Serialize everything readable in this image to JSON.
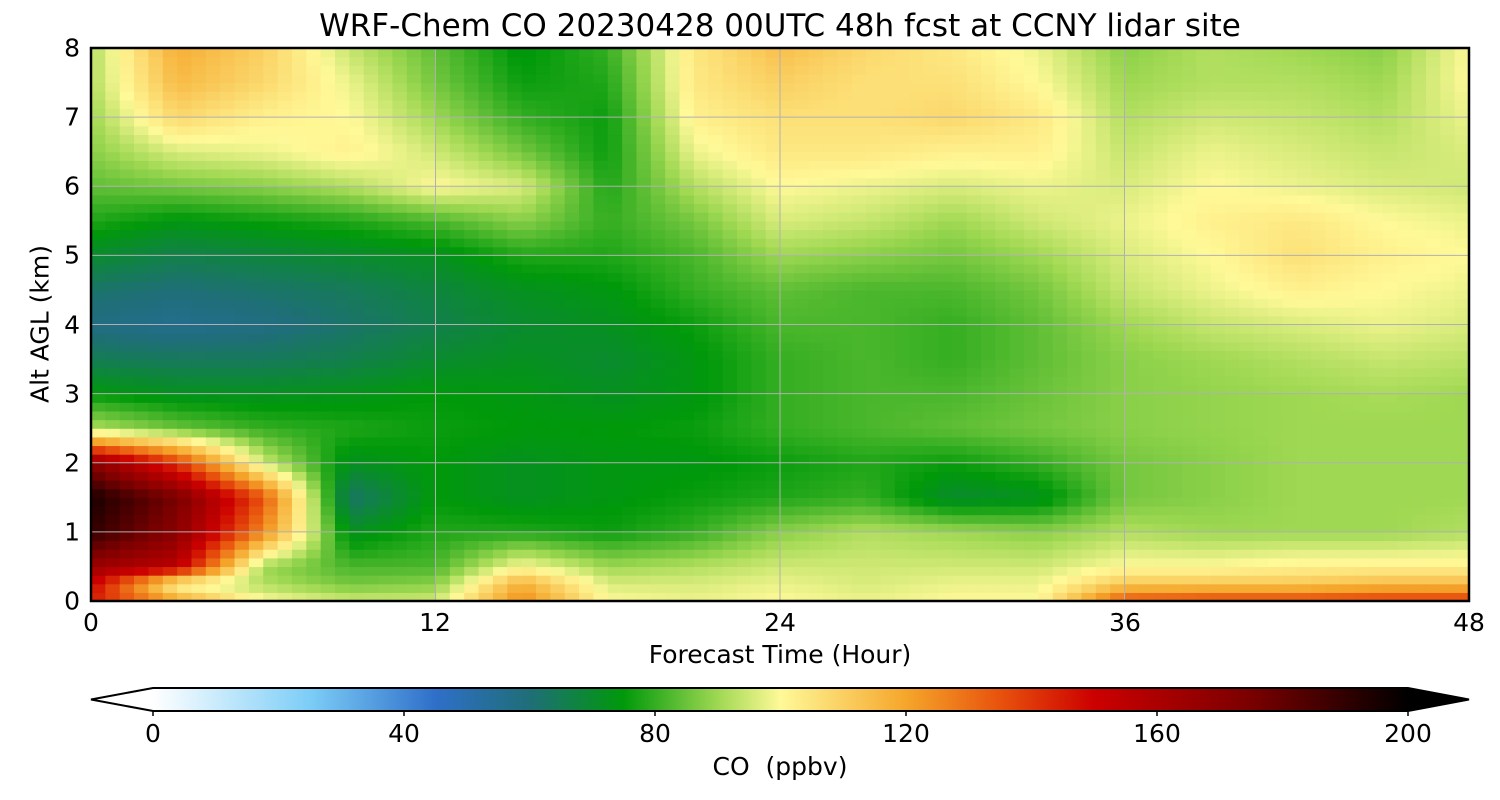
{
  "chart_data": {
    "type": "heatmap",
    "title": "WRF-Chem CO  20230428 00UTC 48h fcst at CCNY lidar site",
    "xlabel": "Forecast Time (Hour)",
    "ylabel": "Alt AGL (km)",
    "xlim": [
      0,
      48
    ],
    "ylim": [
      0,
      8
    ],
    "x_ticks": [
      "0",
      "12",
      "24",
      "36",
      "48"
    ],
    "y_ticks": [
      "0",
      "1",
      "2",
      "3",
      "4",
      "5",
      "6",
      "7",
      "8"
    ],
    "grid": true,
    "colorbar": {
      "label": "CO  (ppbv)",
      "range": [
        0,
        200
      ],
      "ticks": [
        "0",
        "40",
        "80",
        "120",
        "160",
        "200"
      ],
      "extend": "both",
      "placement": "bottom",
      "colors": [
        {
          "value": 0,
          "color": "#ffffff"
        },
        {
          "value": 25,
          "color": "#7ccdf7"
        },
        {
          "value": 45,
          "color": "#2f6fc9"
        },
        {
          "value": 60,
          "color": "#1f6e78"
        },
        {
          "value": 75,
          "color": "#00990a"
        },
        {
          "value": 90,
          "color": "#9fd852"
        },
        {
          "value": 100,
          "color": "#fff998"
        },
        {
          "value": 120,
          "color": "#f5a62b"
        },
        {
          "value": 135,
          "color": "#e8520d"
        },
        {
          "value": 150,
          "color": "#cc0000"
        },
        {
          "value": 175,
          "color": "#7a0000"
        },
        {
          "value": 200,
          "color": "#000000"
        }
      ]
    },
    "heights_km": [
      0,
      0.25,
      0.5,
      1,
      1.5,
      2,
      2.5,
      3,
      3.5,
      4,
      4.5,
      5,
      5.5,
      6,
      6.5,
      7,
      7.5,
      8
    ],
    "times_h": [
      0,
      3,
      6,
      9,
      12,
      15,
      18,
      21,
      24,
      27,
      30,
      33,
      36,
      39,
      42,
      45,
      48
    ],
    "co_ppbv": [
      [
        145,
        120,
        100,
        95,
        95,
        125,
        100,
        98,
        100,
        98,
        100,
        100,
        135,
        138,
        138,
        140,
        140
      ],
      [
        150,
        100,
        92,
        86,
        88,
        118,
        96,
        96,
        98,
        96,
        98,
        98,
        112,
        112,
        112,
        115,
        115
      ],
      [
        165,
        155,
        90,
        82,
        82,
        100,
        90,
        92,
        95,
        95,
        95,
        95,
        100,
        100,
        102,
        102,
        102
      ],
      [
        190,
        170,
        125,
        72,
        78,
        78,
        76,
        80,
        88,
        92,
        90,
        88,
        92,
        90,
        90,
        90,
        92
      ],
      [
        195,
        175,
        135,
        62,
        75,
        72,
        74,
        76,
        78,
        80,
        70,
        72,
        86,
        88,
        90,
        90,
        90
      ],
      [
        170,
        140,
        95,
        72,
        75,
        72,
        74,
        74,
        76,
        78,
        76,
        80,
        86,
        88,
        90,
        90,
        90
      ],
      [
        92,
        85,
        80,
        78,
        76,
        75,
        75,
        76,
        80,
        82,
        84,
        86,
        88,
        89,
        90,
        90,
        90
      ],
      [
        75,
        72,
        72,
        73,
        75,
        74,
        72,
        74,
        80,
        82,
        82,
        85,
        88,
        89,
        90,
        91,
        90
      ],
      [
        65,
        64,
        64,
        66,
        70,
        72,
        70,
        74,
        80,
        82,
        80,
        84,
        88,
        90,
        92,
        94,
        93
      ],
      [
        58,
        56,
        58,
        62,
        66,
        70,
        72,
        76,
        82,
        82,
        80,
        84,
        90,
        94,
        96,
        98,
        96
      ],
      [
        62,
        60,
        62,
        64,
        68,
        72,
        74,
        80,
        84,
        82,
        82,
        86,
        94,
        98,
        102,
        100,
        98
      ],
      [
        70,
        66,
        68,
        70,
        72,
        78,
        78,
        82,
        90,
        88,
        86,
        90,
        96,
        100,
        106,
        102,
        100
      ],
      [
        78,
        74,
        76,
        78,
        82,
        88,
        80,
        86,
        96,
        94,
        90,
        95,
        98,
        102,
        104,
        100,
        98
      ],
      [
        84,
        86,
        88,
        92,
        100,
        96,
        78,
        92,
        100,
        98,
        96,
        98,
        96,
        100,
        98,
        96,
        95
      ],
      [
        88,
        96,
        98,
        102,
        95,
        86,
        76,
        98,
        104,
        104,
        102,
        102,
        94,
        98,
        96,
        94,
        96
      ],
      [
        90,
        108,
        102,
        100,
        90,
        80,
        76,
        102,
        106,
        106,
        108,
        104,
        92,
        95,
        94,
        92,
        98
      ],
      [
        92,
        115,
        108,
        98,
        86,
        76,
        78,
        104,
        110,
        106,
        106,
        100,
        90,
        92,
        92,
        90,
        100
      ],
      [
        92,
        118,
        110,
        94,
        84,
        74,
        80,
        104,
        114,
        108,
        104,
        98,
        88,
        92,
        90,
        88,
        100
      ]
    ]
  }
}
